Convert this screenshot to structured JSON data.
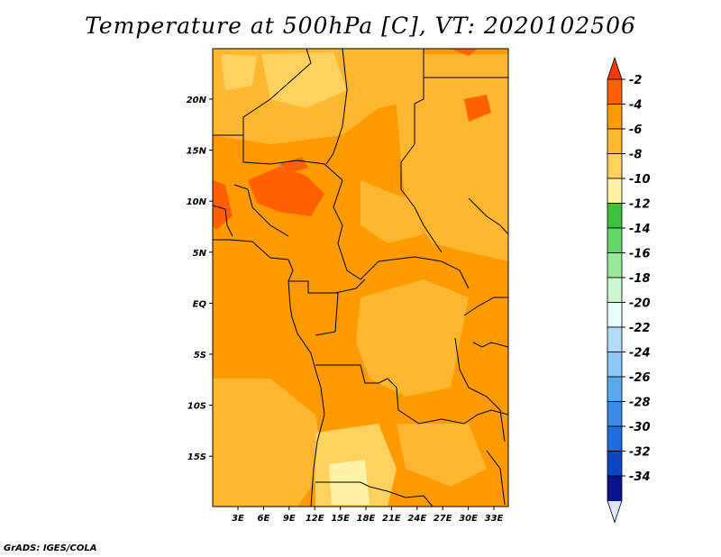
{
  "title": "Temperature at 500hPa [C], VT: 2020102506",
  "credit": "GrADS: IGES/COLA",
  "map": {
    "lon_ticks": [
      "3E",
      "6E",
      "9E",
      "12E",
      "15E",
      "18E",
      "21E",
      "24E",
      "27E",
      "30E",
      "33E"
    ],
    "lat_ticks": [
      "20N",
      "15N",
      "10N",
      "5N",
      "EQ",
      "5S",
      "10S",
      "15S"
    ]
  },
  "colorbar": {
    "labels": [
      "-2",
      "-4",
      "-6",
      "-8",
      "-10",
      "-12",
      "-14",
      "-16",
      "-18",
      "-20",
      "-22",
      "-24",
      "-26",
      "-28",
      "-30",
      "-32",
      "-34"
    ],
    "colors": [
      "#ff6000",
      "#ff9a00",
      "#ffb630",
      "#ffd260",
      "#fff3a8",
      "#3fbf3f",
      "#64d864",
      "#98ea98",
      "#cff7cf",
      "#e8fffc",
      "#b4dcf8",
      "#8cc8f4",
      "#5aaaf0",
      "#3c8ae6",
      "#1e6edc",
      "#0a46be",
      "#0a148c"
    ],
    "upper_arrow_color": "#f03c00",
    "lower_arrow_color": "#dfe6ff"
  }
}
